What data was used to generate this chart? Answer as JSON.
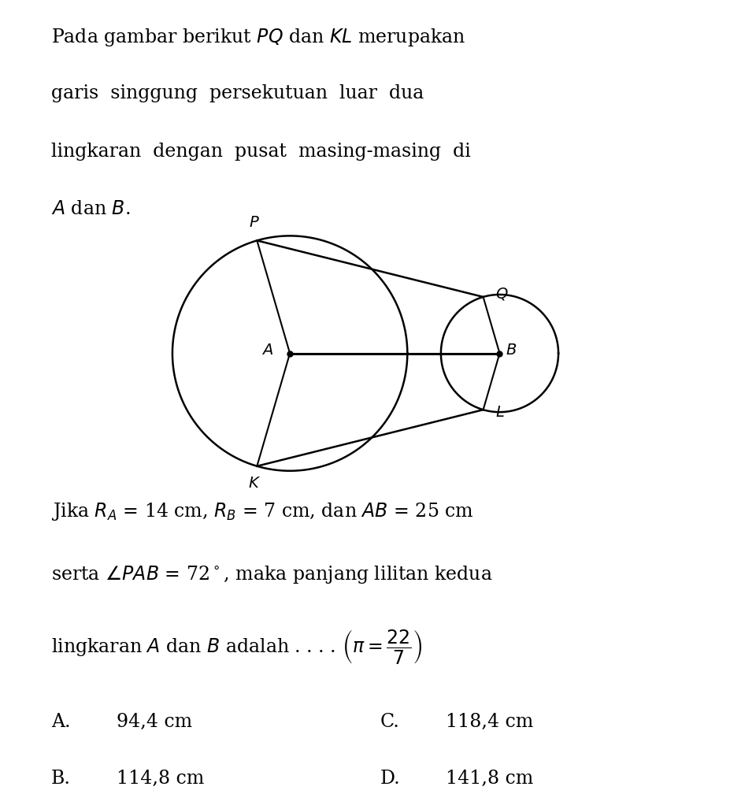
{
  "bg_color": "#ffffff",
  "line_color": "#000000",
  "title_lines": [
    "Pada gambar berikut \\textit{PQ} dan \\textit{KL} merupakan",
    "garis  singgung  persekutuan  luar  dua",
    "lingkaran  dengan  pusat  masing-masing  di",
    "\\textit{A} dan \\textit{B}."
  ],
  "body_lines": [
    "Jika $R_A$ = 14 cm, $R_B$ = 7 cm, dan $AB$ = 25 cm",
    "serta $\\angle PAB$ = 72\\u00b0, maka panjang lilitan kedua",
    "lingkaran $A$ dan $B$ adalah . . . . $\\left(\\pi = \\dfrac{22}{7}\\right)$"
  ],
  "opt_A": "94,4 cm",
  "opt_B": "114,8 cm",
  "opt_C": "118,4 cm",
  "opt_D": "141,8 cm",
  "rA": 2.0,
  "rB": 1.0,
  "cAx": 0.0,
  "cAy": 0.0,
  "cBx": 3.571,
  "cBy": 0.0,
  "label_fs": 14,
  "text_fs": 17
}
